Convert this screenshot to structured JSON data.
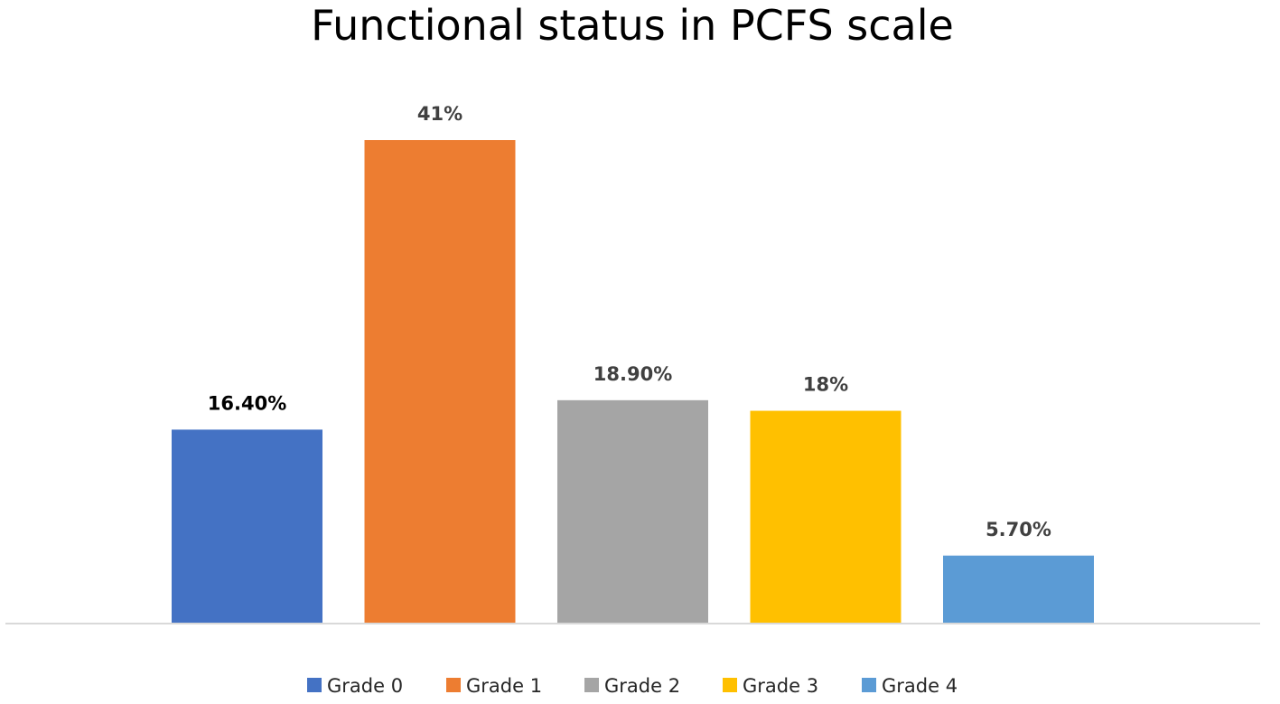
{
  "chart_data": {
    "type": "bar",
    "title": "Functional status in PCFS scale",
    "categories": [
      "Grade 0",
      "Grade 1",
      "Grade 2",
      "Grade 3",
      "Grade 4"
    ],
    "values": [
      16.4,
      41,
      18.9,
      18,
      5.7
    ],
    "data_labels": [
      "16.40%",
      "41%",
      "18.90%",
      "18%",
      "5.70%"
    ],
    "colors": [
      "#4472C4",
      "#ED7D31",
      "#A5A5A5",
      "#FFC000",
      "#5B9BD5"
    ],
    "ylim": [
      0,
      41
    ],
    "legend": {
      "position": "bottom",
      "entries": [
        "Grade 0",
        "Grade 1",
        "Grade 2",
        "Grade 3",
        "Grade 4"
      ]
    },
    "axis_color": "#D9D9D9",
    "grid": false
  }
}
